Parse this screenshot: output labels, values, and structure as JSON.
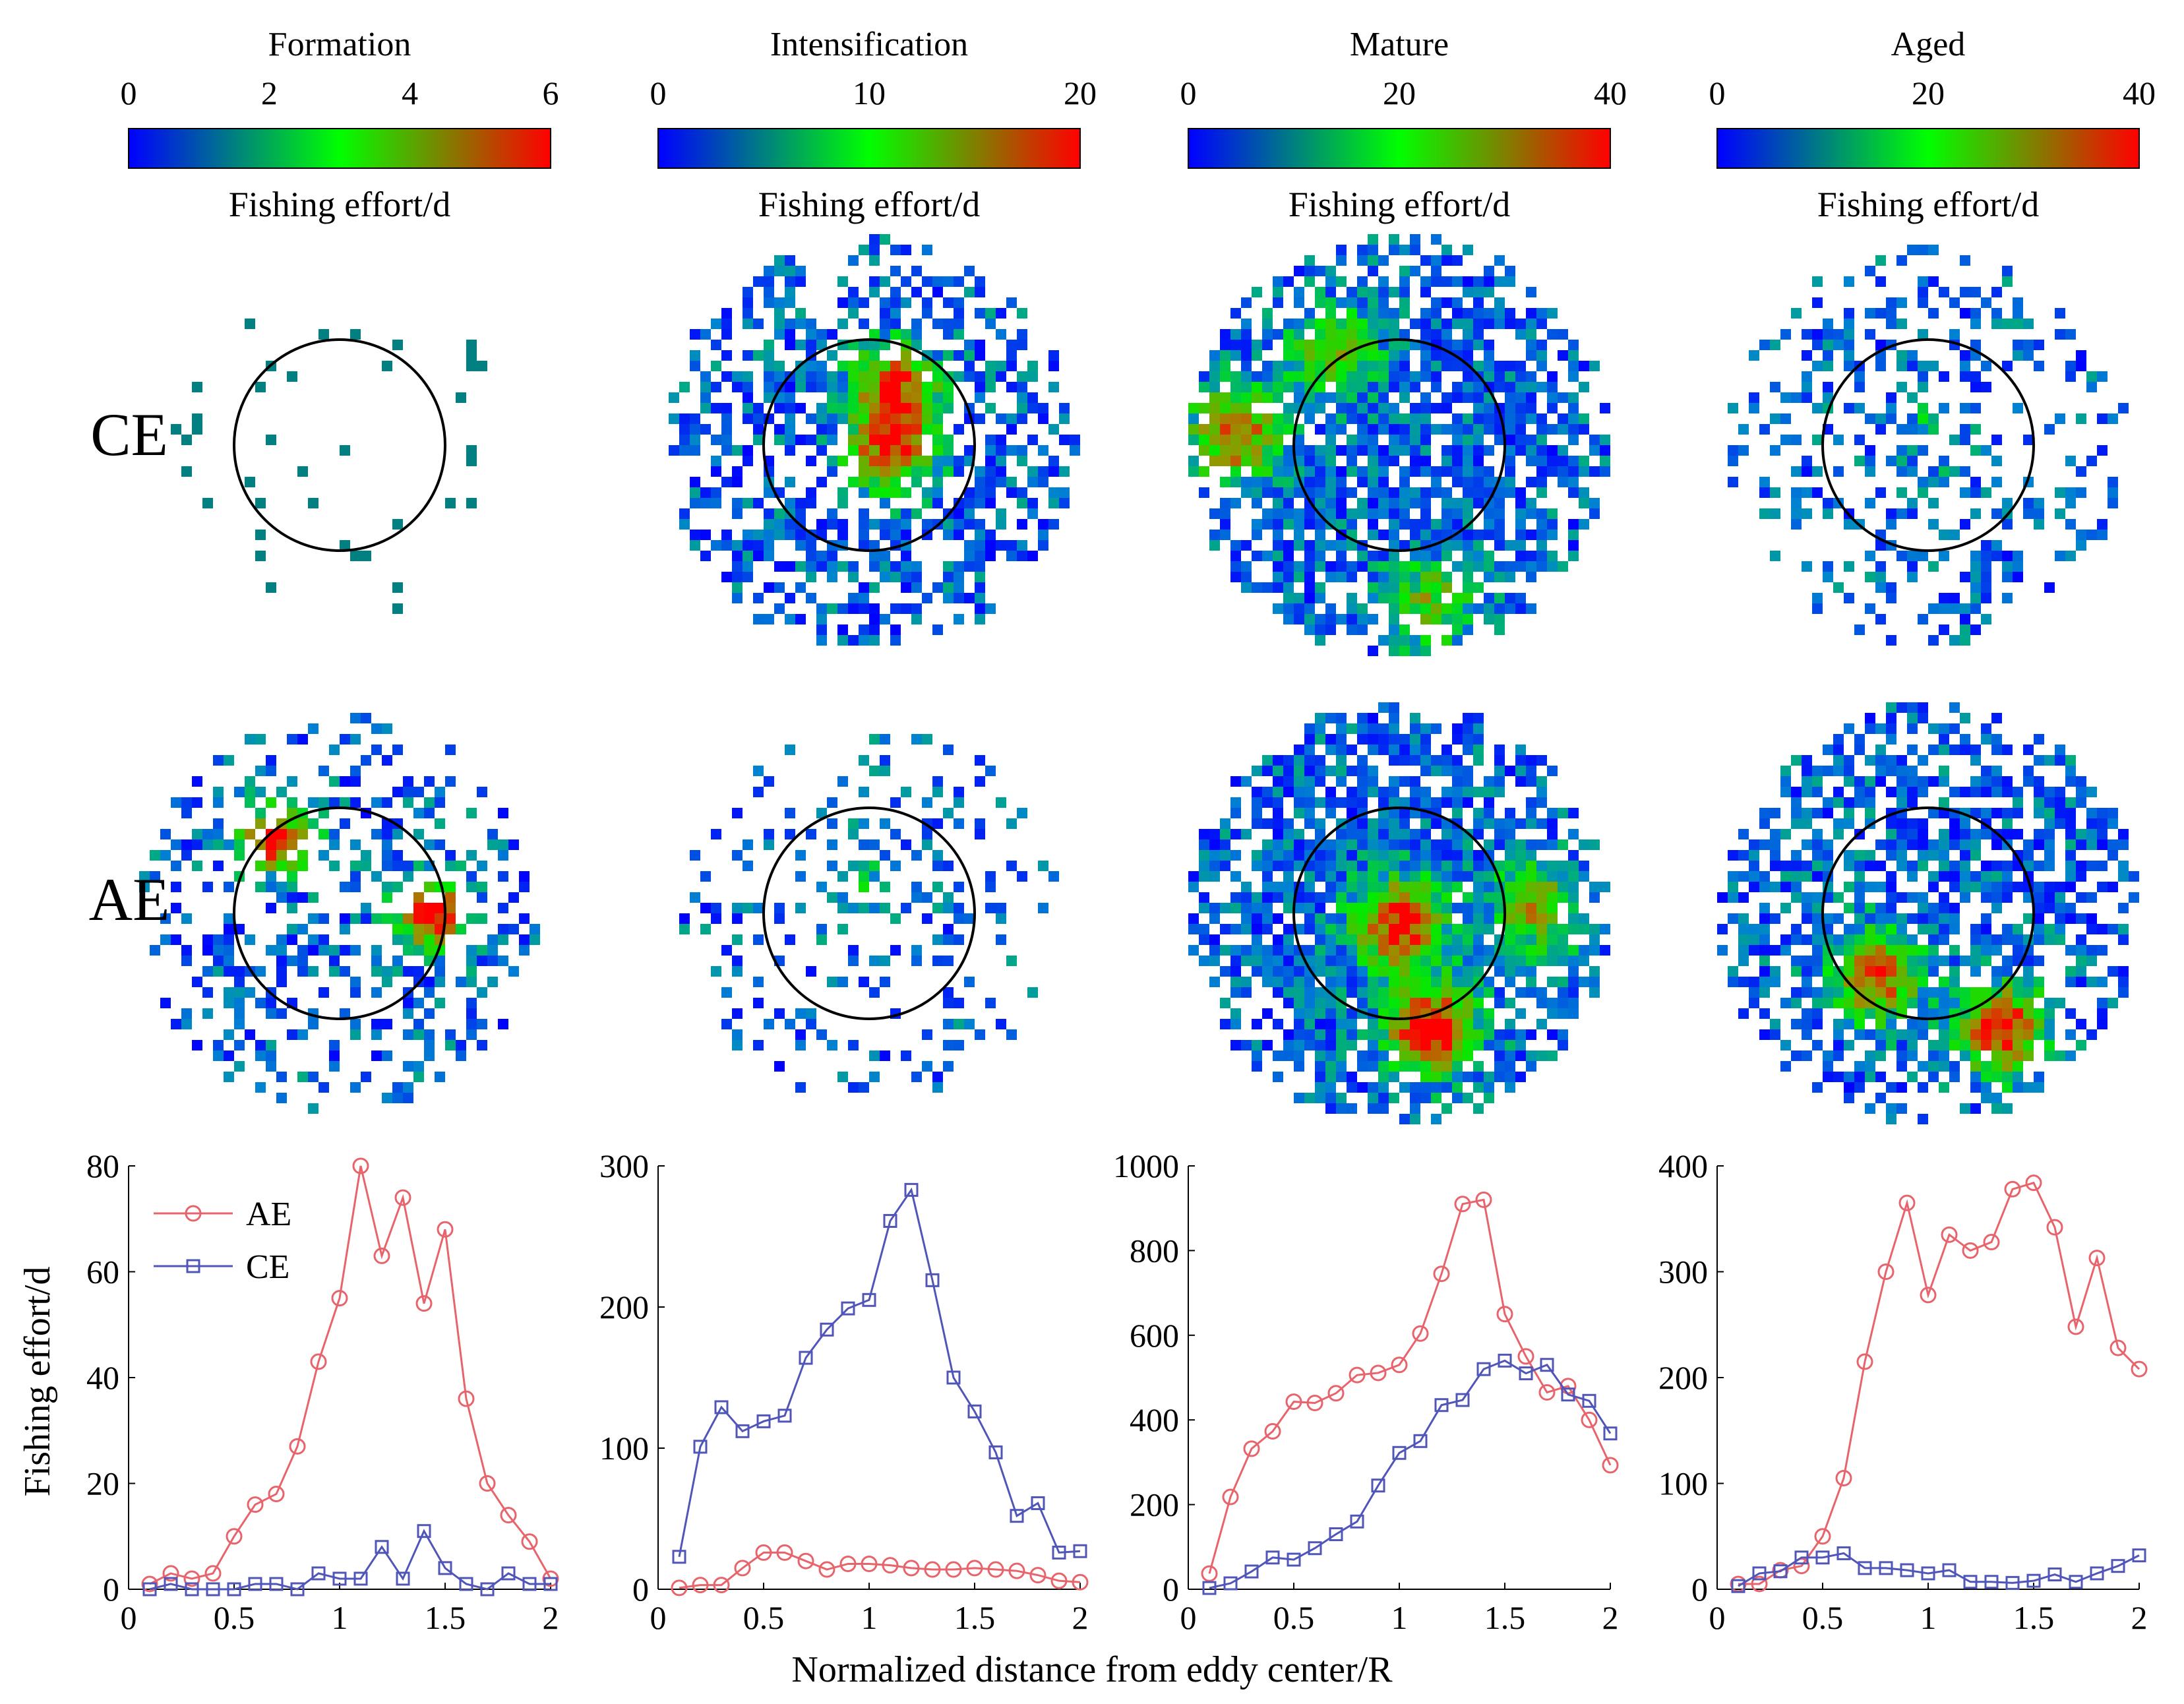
{
  "figure": {
    "row_labels": [
      "CE",
      "AE"
    ],
    "shared_xlabel": "Normalized distance from eddy center/R",
    "shared_ylabel": "Fishing effort/d"
  },
  "colors": {
    "AE": "#e8646c",
    "CE": "#5055b8",
    "colormap": [
      "#0000ff",
      "#00ff00",
      "#ff0000"
    ],
    "circle": "#000000"
  },
  "chart_data": [
    {
      "type": "line",
      "stage": "Formation",
      "colorbar": {
        "min": 0,
        "max": 6,
        "ticks": [
          0,
          2,
          4,
          6
        ],
        "label": "Fishing effort/d"
      },
      "x": [
        0.1,
        0.2,
        0.3,
        0.4,
        0.5,
        0.6,
        0.7,
        0.8,
        0.9,
        1.0,
        1.1,
        1.2,
        1.3,
        1.4,
        1.5,
        1.6,
        1.7,
        1.8,
        1.9,
        2.0
      ],
      "series": [
        {
          "name": "AE",
          "marker": "circle",
          "values": [
            1,
            3,
            2,
            3,
            10,
            16,
            18,
            27,
            43,
            55,
            80,
            63,
            74,
            54,
            68,
            36,
            20,
            14,
            9,
            2
          ]
        },
        {
          "name": "CE",
          "marker": "square",
          "values": [
            0,
            1,
            0,
            0,
            0,
            1,
            1,
            0,
            3,
            2,
            2,
            8,
            2,
            11,
            4,
            1,
            0,
            3,
            1,
            1
          ]
        }
      ],
      "xlim": [
        0,
        2
      ],
      "xticks": [
        0,
        0.5,
        1,
        1.5,
        2
      ],
      "ylim": [
        0,
        80
      ],
      "yticks": [
        0,
        20,
        40,
        60,
        80
      ],
      "xlabel": "Normalized distance from eddy center/R",
      "ylabel": "Fishing effort/d",
      "legend": {
        "position": "top-left",
        "entries": [
          "AE",
          "CE"
        ]
      }
    },
    {
      "type": "line",
      "stage": "Intensification",
      "colorbar": {
        "min": 0,
        "max": 20,
        "ticks": [
          0,
          10,
          20
        ],
        "label": "Fishing effort/d"
      },
      "x": [
        0.1,
        0.2,
        0.3,
        0.4,
        0.5,
        0.6,
        0.7,
        0.8,
        0.9,
        1.0,
        1.1,
        1.2,
        1.3,
        1.4,
        1.5,
        1.6,
        1.7,
        1.8,
        1.9,
        2.0
      ],
      "series": [
        {
          "name": "AE",
          "marker": "circle",
          "values": [
            1,
            3,
            3,
            15,
            26,
            26,
            20,
            14,
            18,
            18,
            17,
            15,
            14,
            14,
            15,
            14,
            13,
            10,
            6,
            5
          ]
        },
        {
          "name": "CE",
          "marker": "square",
          "values": [
            23,
            101,
            129,
            112,
            119,
            123,
            164,
            184,
            199,
            205,
            261,
            283,
            219,
            150,
            126,
            97,
            52,
            61,
            26,
            27
          ]
        }
      ],
      "xlim": [
        0,
        2
      ],
      "xticks": [
        0,
        0.5,
        1,
        1.5,
        2
      ],
      "ylim": [
        0,
        300
      ],
      "yticks": [
        0,
        100,
        200,
        300
      ]
    },
    {
      "type": "line",
      "stage": "Mature",
      "colorbar": {
        "min": 0,
        "max": 40,
        "ticks": [
          0,
          20,
          40
        ],
        "label": "Fishing effort/d"
      },
      "x": [
        0.1,
        0.2,
        0.3,
        0.4,
        0.5,
        0.6,
        0.7,
        0.8,
        0.9,
        1.0,
        1.1,
        1.2,
        1.3,
        1.4,
        1.5,
        1.6,
        1.7,
        1.8,
        1.9,
        2.0
      ],
      "series": [
        {
          "name": "AE",
          "marker": "circle",
          "values": [
            37,
            218,
            332,
            373,
            443,
            440,
            463,
            506,
            511,
            530,
            604,
            745,
            910,
            920,
            650,
            550,
            465,
            480,
            400,
            293
          ]
        },
        {
          "name": "CE",
          "marker": "square",
          "values": [
            3,
            14,
            42,
            75,
            70,
            97,
            130,
            160,
            245,
            322,
            350,
            435,
            447,
            520,
            540,
            510,
            530,
            460,
            445,
            368
          ]
        }
      ],
      "xlim": [
        0,
        2
      ],
      "xticks": [
        0,
        0.5,
        1,
        1.5,
        2
      ],
      "ylim": [
        0,
        1000
      ],
      "yticks": [
        0,
        200,
        400,
        600,
        800,
        1000
      ]
    },
    {
      "type": "line",
      "stage": "Aged",
      "colorbar": {
        "min": 0,
        "max": 40,
        "ticks": [
          0,
          20,
          40
        ],
        "label": "Fishing effort/d"
      },
      "x": [
        0.1,
        0.2,
        0.3,
        0.4,
        0.5,
        0.6,
        0.7,
        0.8,
        0.9,
        1.0,
        1.1,
        1.2,
        1.3,
        1.4,
        1.5,
        1.6,
        1.7,
        1.8,
        1.9,
        2.0
      ],
      "series": [
        {
          "name": "AE",
          "marker": "circle",
          "values": [
            5,
            5,
            18,
            22,
            50,
            105,
            215,
            300,
            365,
            278,
            335,
            320,
            328,
            378,
            384,
            342,
            248,
            313,
            228,
            208
          ]
        },
        {
          "name": "CE",
          "marker": "square",
          "values": [
            3,
            15,
            17,
            30,
            30,
            34,
            20,
            20,
            18,
            15,
            18,
            7,
            7,
            6,
            8,
            14,
            7,
            15,
            22,
            32
          ]
        }
      ],
      "xlim": [
        0,
        2
      ],
      "xticks": [
        0,
        0.5,
        1,
        1.5,
        2
      ],
      "ylim": [
        0,
        400
      ],
      "yticks": [
        0,
        100,
        200,
        300,
        400
      ]
    }
  ]
}
